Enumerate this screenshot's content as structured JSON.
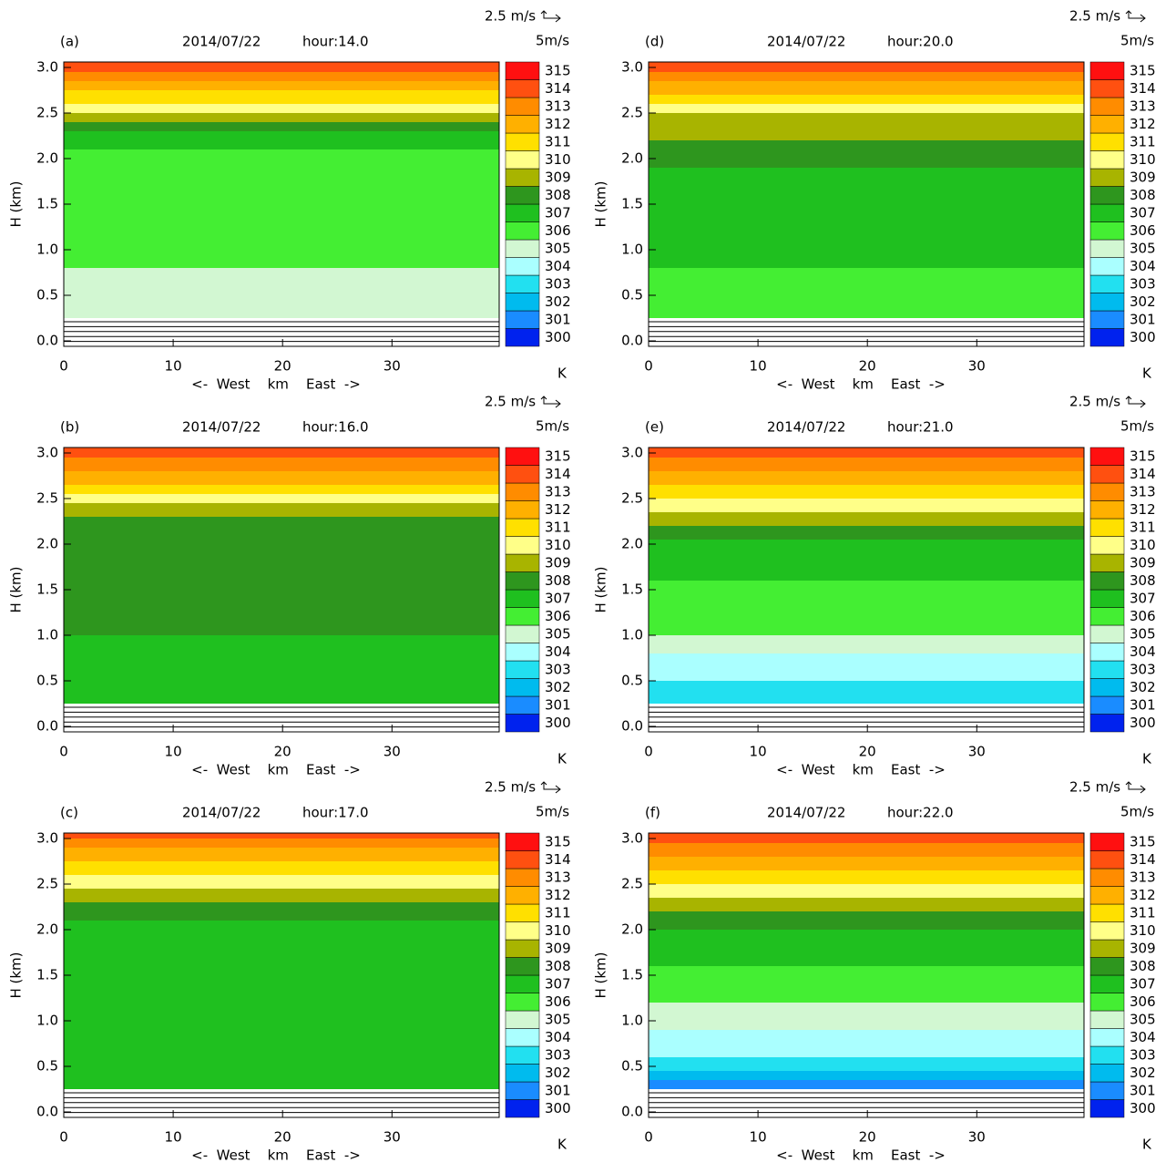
{
  "chart_data": [
    {
      "type": "contour",
      "panel": "(a)",
      "date": "2014/07/22",
      "hour": "hour:14.0",
      "vector_ref": "2.5 m/s",
      "vector_unit": "5m/s",
      "xlabel": "<-  West    km    East  ->",
      "ylabel": "H (km)",
      "colorbar_unit": "K",
      "xlim": [
        0,
        39.8
      ],
      "xticks": [
        0,
        10,
        20,
        30
      ],
      "ylim": [
        -0.06,
        3.06
      ],
      "yticks": [
        {
          "value": 0,
          "label": "0.0"
        },
        {
          "value": 0.5,
          "label": "0.5"
        },
        {
          "value": 1,
          "label": "1.0"
        },
        {
          "value": 1.5,
          "label": "1.5"
        },
        {
          "value": 2,
          "label": "2.0"
        },
        {
          "value": 2.5,
          "label": "2.5"
        },
        {
          "value": 3,
          "label": "3.0"
        }
      ],
      "levels": [
        300,
        301,
        302,
        303,
        304,
        305,
        306,
        307,
        308,
        309,
        310,
        311,
        312,
        313,
        314,
        315
      ],
      "colors": [
        "#0022ee",
        "#1a8cff",
        "#00bbee",
        "#22e0f0",
        "#aaffff",
        "#d2f7d2",
        "#44ee33",
        "#1fc01f",
        "#2e961e",
        "#a8b400",
        "#ffff88",
        "#ffe000",
        "#ffb000",
        "#ff8c00",
        "#ff5010",
        "#ff1010"
      ],
      "band_bottoms": [
        null,
        null,
        null,
        null,
        null,
        0.25,
        0.8,
        2.1,
        2.3,
        2.4,
        2.5,
        2.6,
        2.75,
        2.85,
        2.95,
        null
      ]
    },
    {
      "type": "contour",
      "panel": "(b)",
      "date": "2014/07/22",
      "hour": "hour:16.0",
      "vector_ref": "2.5 m/s",
      "vector_unit": "5m/s",
      "xlabel": "<-  West    km    East  ->",
      "ylabel": "H (km)",
      "colorbar_unit": "K",
      "xlim": [
        0,
        39.8
      ],
      "xticks": [
        0,
        10,
        20,
        30
      ],
      "ylim": [
        -0.06,
        3.06
      ],
      "yticks": [
        {
          "value": 0,
          "label": "0.0"
        },
        {
          "value": 0.5,
          "label": "0.5"
        },
        {
          "value": 1,
          "label": "1.0"
        },
        {
          "value": 1.5,
          "label": "1.5"
        },
        {
          "value": 2,
          "label": "2.0"
        },
        {
          "value": 2.5,
          "label": "2.5"
        },
        {
          "value": 3,
          "label": "3.0"
        }
      ],
      "levels": [
        300,
        301,
        302,
        303,
        304,
        305,
        306,
        307,
        308,
        309,
        310,
        311,
        312,
        313,
        314,
        315
      ],
      "colors": [
        "#0022ee",
        "#1a8cff",
        "#00bbee",
        "#22e0f0",
        "#aaffff",
        "#d2f7d2",
        "#44ee33",
        "#1fc01f",
        "#2e961e",
        "#a8b400",
        "#ffff88",
        "#ffe000",
        "#ffb000",
        "#ff8c00",
        "#ff5010",
        "#ff1010"
      ],
      "band_bottoms": [
        null,
        null,
        null,
        null,
        null,
        null,
        null,
        0.25,
        1.0,
        2.3,
        2.45,
        2.55,
        2.65,
        2.8,
        2.95,
        null
      ]
    },
    {
      "type": "contour",
      "panel": "(c)",
      "date": "2014/07/22",
      "hour": "hour:17.0",
      "vector_ref": "2.5 m/s",
      "vector_unit": "5m/s",
      "xlabel": "<-  West    km    East  ->",
      "ylabel": "H (km)",
      "colorbar_unit": "K",
      "xlim": [
        0,
        39.8
      ],
      "xticks": [
        0,
        10,
        20,
        30
      ],
      "ylim": [
        -0.06,
        3.06
      ],
      "yticks": [
        {
          "value": 0,
          "label": "0.0"
        },
        {
          "value": 0.5,
          "label": "0.5"
        },
        {
          "value": 1,
          "label": "1.0"
        },
        {
          "value": 1.5,
          "label": "1.5"
        },
        {
          "value": 2,
          "label": "2.0"
        },
        {
          "value": 2.5,
          "label": "2.5"
        },
        {
          "value": 3,
          "label": "3.0"
        }
      ],
      "levels": [
        300,
        301,
        302,
        303,
        304,
        305,
        306,
        307,
        308,
        309,
        310,
        311,
        312,
        313,
        314,
        315
      ],
      "colors": [
        "#0022ee",
        "#1a8cff",
        "#00bbee",
        "#22e0f0",
        "#aaffff",
        "#d2f7d2",
        "#44ee33",
        "#1fc01f",
        "#2e961e",
        "#a8b400",
        "#ffff88",
        "#ffe000",
        "#ffb000",
        "#ff8c00",
        "#ff5010",
        "#ff1010"
      ],
      "band_bottoms": [
        null,
        null,
        null,
        null,
        null,
        null,
        null,
        0.25,
        2.1,
        2.3,
        2.45,
        2.6,
        2.75,
        2.9,
        3.0,
        null
      ]
    },
    {
      "type": "contour",
      "panel": "(d)",
      "date": "2014/07/22",
      "hour": "hour:20.0",
      "vector_ref": "2.5 m/s",
      "vector_unit": "5m/s",
      "xlabel": "<-  West    km    East  ->",
      "ylabel": "H (km)",
      "colorbar_unit": "K",
      "xlim": [
        0,
        39.8
      ],
      "xticks": [
        0,
        10,
        20,
        30
      ],
      "ylim": [
        -0.06,
        3.06
      ],
      "yticks": [
        {
          "value": 0,
          "label": "0.0"
        },
        {
          "value": 0.5,
          "label": "0.5"
        },
        {
          "value": 1,
          "label": "1.0"
        },
        {
          "value": 1.5,
          "label": "1.5"
        },
        {
          "value": 2,
          "label": "2.0"
        },
        {
          "value": 2.5,
          "label": "2.5"
        },
        {
          "value": 3,
          "label": "3.0"
        }
      ],
      "levels": [
        300,
        301,
        302,
        303,
        304,
        305,
        306,
        307,
        308,
        309,
        310,
        311,
        312,
        313,
        314,
        315
      ],
      "colors": [
        "#0022ee",
        "#1a8cff",
        "#00bbee",
        "#22e0f0",
        "#aaffff",
        "#d2f7d2",
        "#44ee33",
        "#1fc01f",
        "#2e961e",
        "#a8b400",
        "#ffff88",
        "#ffe000",
        "#ffb000",
        "#ff8c00",
        "#ff5010",
        "#ff1010"
      ],
      "band_bottoms": [
        null,
        null,
        null,
        null,
        null,
        null,
        0.25,
        0.8,
        1.9,
        2.2,
        2.5,
        2.6,
        2.7,
        2.85,
        2.95,
        null
      ]
    },
    {
      "type": "contour",
      "panel": "(e)",
      "date": "2014/07/22",
      "hour": "hour:21.0",
      "vector_ref": "2.5 m/s",
      "vector_unit": "5m/s",
      "xlabel": "<-  West    km    East  ->",
      "ylabel": "H (km)",
      "colorbar_unit": "K",
      "xlim": [
        0,
        39.8
      ],
      "xticks": [
        0,
        10,
        20,
        30
      ],
      "ylim": [
        -0.06,
        3.06
      ],
      "yticks": [
        {
          "value": 0,
          "label": "0.0"
        },
        {
          "value": 0.5,
          "label": "0.5"
        },
        {
          "value": 1,
          "label": "1.0"
        },
        {
          "value": 1.5,
          "label": "1.5"
        },
        {
          "value": 2,
          "label": "2.0"
        },
        {
          "value": 2.5,
          "label": "2.5"
        },
        {
          "value": 3,
          "label": "3.0"
        }
      ],
      "levels": [
        300,
        301,
        302,
        303,
        304,
        305,
        306,
        307,
        308,
        309,
        310,
        311,
        312,
        313,
        314,
        315
      ],
      "colors": [
        "#0022ee",
        "#1a8cff",
        "#00bbee",
        "#22e0f0",
        "#aaffff",
        "#d2f7d2",
        "#44ee33",
        "#1fc01f",
        "#2e961e",
        "#a8b400",
        "#ffff88",
        "#ffe000",
        "#ffb000",
        "#ff8c00",
        "#ff5010",
        "#ff1010"
      ],
      "band_bottoms": [
        null,
        null,
        null,
        0.25,
        0.5,
        0.8,
        1.0,
        1.6,
        2.05,
        2.2,
        2.35,
        2.5,
        2.65,
        2.8,
        2.95,
        null
      ]
    },
    {
      "type": "contour",
      "panel": "(f)",
      "date": "2014/07/22",
      "hour": "hour:22.0",
      "vector_ref": "2.5 m/s",
      "vector_unit": "5m/s",
      "xlabel": "<-  West    km    East  ->",
      "ylabel": "H (km)",
      "colorbar_unit": "K",
      "xlim": [
        0,
        39.8
      ],
      "xticks": [
        0,
        10,
        20,
        30
      ],
      "ylim": [
        -0.06,
        3.06
      ],
      "yticks": [
        {
          "value": 0,
          "label": "0.0"
        },
        {
          "value": 0.5,
          "label": "0.5"
        },
        {
          "value": 1,
          "label": "1.0"
        },
        {
          "value": 1.5,
          "label": "1.5"
        },
        {
          "value": 2,
          "label": "2.0"
        },
        {
          "value": 2.5,
          "label": "2.5"
        },
        {
          "value": 3,
          "label": "3.0"
        }
      ],
      "levels": [
        300,
        301,
        302,
        303,
        304,
        305,
        306,
        307,
        308,
        309,
        310,
        311,
        312,
        313,
        314,
        315
      ],
      "colors": [
        "#0022ee",
        "#1a8cff",
        "#00bbee",
        "#22e0f0",
        "#aaffff",
        "#d2f7d2",
        "#44ee33",
        "#1fc01f",
        "#2e961e",
        "#a8b400",
        "#ffff88",
        "#ffe000",
        "#ffb000",
        "#ff8c00",
        "#ff5010",
        "#ff1010"
      ],
      "band_bottoms": [
        null,
        0.25,
        0.35,
        0.45,
        0.6,
        0.9,
        1.2,
        1.6,
        2.0,
        2.2,
        2.35,
        2.5,
        2.65,
        2.8,
        2.95,
        null
      ]
    }
  ]
}
